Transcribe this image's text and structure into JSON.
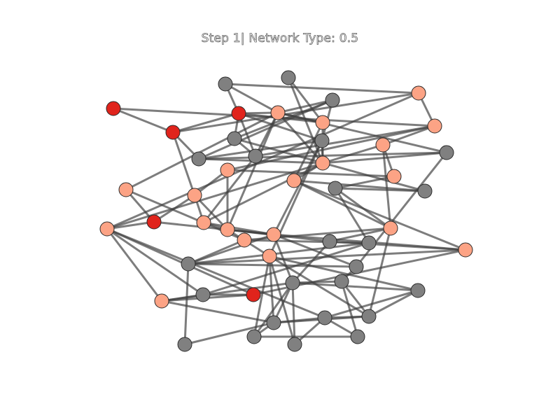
{
  "title": "Step 1| Network Type: 0.5",
  "colors": {
    "infected": "#e0241c",
    "exposed": "#fca385",
    "susceptible": "#808080",
    "edge": "#3f3f3f",
    "background": "#ffffff"
  },
  "nodes": [
    {
      "id": "n1",
      "state": "susceptible"
    },
    {
      "id": "n2",
      "state": "susceptible"
    },
    {
      "id": "n3",
      "state": "susceptible"
    },
    {
      "id": "n4",
      "state": "exposed"
    },
    {
      "id": "n5",
      "state": "infected"
    },
    {
      "id": "n6",
      "state": "infected"
    },
    {
      "id": "n7",
      "state": "infected"
    },
    {
      "id": "n8",
      "state": "exposed"
    },
    {
      "id": "n9",
      "state": "exposed"
    },
    {
      "id": "n10",
      "state": "susceptible"
    },
    {
      "id": "n11",
      "state": "susceptible"
    },
    {
      "id": "n12",
      "state": "susceptible"
    },
    {
      "id": "n13",
      "state": "exposed"
    },
    {
      "id": "n14",
      "state": "susceptible"
    },
    {
      "id": "n15",
      "state": "susceptible"
    },
    {
      "id": "n16",
      "state": "exposed"
    },
    {
      "id": "n17",
      "state": "exposed"
    },
    {
      "id": "n18",
      "state": "exposed"
    },
    {
      "id": "n19",
      "state": "exposed"
    },
    {
      "id": "n20",
      "state": "exposed"
    },
    {
      "id": "n21",
      "state": "susceptible"
    },
    {
      "id": "n22",
      "state": "susceptible"
    },
    {
      "id": "n23",
      "state": "exposed"
    },
    {
      "id": "n24",
      "state": "exposed"
    },
    {
      "id": "n25",
      "state": "infected"
    },
    {
      "id": "n26",
      "state": "exposed"
    },
    {
      "id": "n27",
      "state": "exposed"
    },
    {
      "id": "n28",
      "state": "exposed"
    },
    {
      "id": "n29",
      "state": "exposed"
    },
    {
      "id": "n30",
      "state": "exposed"
    },
    {
      "id": "n31",
      "state": "exposed"
    },
    {
      "id": "n32",
      "state": "susceptible"
    },
    {
      "id": "n33",
      "state": "susceptible"
    },
    {
      "id": "n34",
      "state": "exposed"
    },
    {
      "id": "n35",
      "state": "exposed"
    },
    {
      "id": "n36",
      "state": "susceptible"
    },
    {
      "id": "n37",
      "state": "susceptible"
    },
    {
      "id": "n38",
      "state": "susceptible"
    },
    {
      "id": "n39",
      "state": "infected"
    },
    {
      "id": "n40",
      "state": "exposed"
    },
    {
      "id": "n41",
      "state": "susceptible"
    },
    {
      "id": "n42",
      "state": "susceptible"
    },
    {
      "id": "n43",
      "state": "susceptible"
    },
    {
      "id": "n44",
      "state": "susceptible"
    },
    {
      "id": "n45",
      "state": "susceptible"
    },
    {
      "id": "n46",
      "state": "susceptible"
    }
  ],
  "edges": [
    [
      "n5",
      "n6"
    ],
    [
      "n5",
      "n13"
    ],
    [
      "n6",
      "n7"
    ],
    [
      "n6",
      "n14"
    ],
    [
      "n6",
      "n9"
    ],
    [
      "n6",
      "n24"
    ],
    [
      "n1",
      "n7"
    ],
    [
      "n1",
      "n4"
    ],
    [
      "n1",
      "n9"
    ],
    [
      "n2",
      "n8"
    ],
    [
      "n2",
      "n16"
    ],
    [
      "n3",
      "n4"
    ],
    [
      "n3",
      "n14"
    ],
    [
      "n3",
      "n12"
    ],
    [
      "n3",
      "n10"
    ],
    [
      "n4",
      "n7"
    ],
    [
      "n4",
      "n8"
    ],
    [
      "n4",
      "n11"
    ],
    [
      "n4",
      "n16"
    ],
    [
      "n4",
      "n15"
    ],
    [
      "n4",
      "n27"
    ],
    [
      "n4",
      "n23"
    ],
    [
      "n7",
      "n12"
    ],
    [
      "n7",
      "n11"
    ],
    [
      "n7",
      "n8"
    ],
    [
      "n7",
      "n10"
    ],
    [
      "n8",
      "n16"
    ],
    [
      "n8",
      "n20"
    ],
    [
      "n9",
      "n13"
    ],
    [
      "n9",
      "n29"
    ],
    [
      "n10",
      "n11"
    ],
    [
      "n11",
      "n13"
    ],
    [
      "n12",
      "n14"
    ],
    [
      "n12",
      "n16"
    ],
    [
      "n12",
      "n28"
    ],
    [
      "n12",
      "n34"
    ],
    [
      "n13",
      "n18"
    ],
    [
      "n14",
      "n15"
    ],
    [
      "n14",
      "n16"
    ],
    [
      "n15",
      "n16"
    ],
    [
      "n15",
      "n37"
    ],
    [
      "n16",
      "n20"
    ],
    [
      "n16",
      "n17"
    ],
    [
      "n16",
      "n26"
    ],
    [
      "n17",
      "n19"
    ],
    [
      "n18",
      "n19"
    ],
    [
      "n18",
      "n24"
    ],
    [
      "n18",
      "n27"
    ],
    [
      "n19",
      "n21"
    ],
    [
      "n20",
      "n22"
    ],
    [
      "n20",
      "n30"
    ],
    [
      "n20",
      "n35"
    ],
    [
      "n21",
      "n22"
    ],
    [
      "n21",
      "n33"
    ],
    [
      "n23",
      "n31"
    ],
    [
      "n23",
      "n25"
    ],
    [
      "n24",
      "n27"
    ],
    [
      "n24",
      "n26"
    ],
    [
      "n24",
      "n25"
    ],
    [
      "n25",
      "n29"
    ],
    [
      "n25",
      "n28"
    ],
    [
      "n26",
      "n28"
    ],
    [
      "n26",
      "n27"
    ],
    [
      "n27",
      "n28"
    ],
    [
      "n27",
      "n34"
    ],
    [
      "n27",
      "n32"
    ],
    [
      "n28",
      "n35"
    ],
    [
      "n28",
      "n37"
    ],
    [
      "n28",
      "n36"
    ],
    [
      "n28",
      "n41"
    ],
    [
      "n29",
      "n39"
    ],
    [
      "n29",
      "n40"
    ],
    [
      "n29",
      "n38"
    ],
    [
      "n29",
      "n46"
    ],
    [
      "n30",
      "n31"
    ],
    [
      "n30",
      "n32"
    ],
    [
      "n30",
      "n44"
    ],
    [
      "n31",
      "n33"
    ],
    [
      "n31",
      "n36"
    ],
    [
      "n32",
      "n35"
    ],
    [
      "n32",
      "n41"
    ],
    [
      "n33",
      "n38"
    ],
    [
      "n33",
      "n36"
    ],
    [
      "n34",
      "n43"
    ],
    [
      "n34",
      "n44"
    ],
    [
      "n35",
      "n36"
    ],
    [
      "n35",
      "n39"
    ],
    [
      "n36",
      "n37"
    ],
    [
      "n37",
      "n42"
    ],
    [
      "n38",
      "n39"
    ],
    [
      "n38",
      "n40"
    ],
    [
      "n39",
      "n40"
    ],
    [
      "n40",
      "n45"
    ],
    [
      "n40",
      "n41"
    ],
    [
      "n41",
      "n42"
    ],
    [
      "n41",
      "n43"
    ],
    [
      "n41",
      "n45"
    ],
    [
      "n42",
      "n44"
    ],
    [
      "n43",
      "n44"
    ],
    [
      "n43",
      "n46"
    ],
    [
      "n44",
      "n46"
    ],
    [
      "n45",
      "n46"
    ],
    [
      "n10",
      "n22"
    ],
    [
      "n13",
      "n17"
    ],
    [
      "n16",
      "n29"
    ],
    [
      "n34",
      "n45"
    ],
    [
      "n17",
      "n30"
    ],
    [
      "n21",
      "n30"
    ],
    [
      "n11",
      "n26"
    ]
  ]
}
